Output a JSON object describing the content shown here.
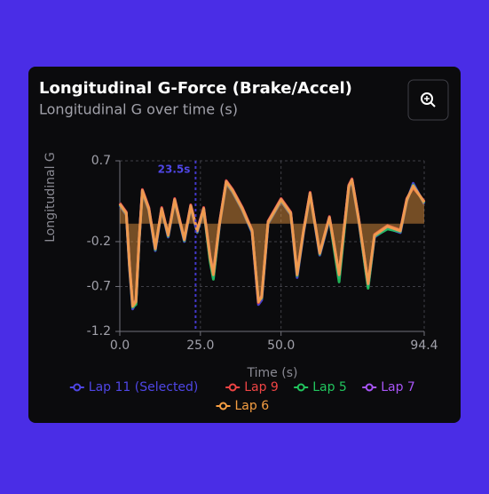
{
  "chart_data": {
    "type": "line",
    "title": "Longitudinal G-Force (Brake/Accel)",
    "subtitle": "Longitudinal G over time (s)",
    "x_label": "Time (s)",
    "y_label": "Longitudinal G",
    "x": [
      0,
      2,
      3,
      4,
      5,
      6,
      7,
      9,
      11,
      13,
      15,
      17,
      20,
      22,
      24,
      26,
      28,
      29,
      31,
      33,
      35,
      38,
      41,
      43,
      44,
      46,
      50,
      53,
      55,
      57,
      59,
      62,
      65,
      68,
      71,
      72,
      74,
      77,
      79,
      83,
      87,
      89,
      91,
      94.4
    ],
    "series": [
      {
        "name": "Lap 11 (Selected)",
        "color": "#4f46e5",
        "values": [
          0.2,
          0.1,
          -0.5,
          -0.95,
          -0.88,
          -0.2,
          0.35,
          0.15,
          -0.3,
          0.15,
          -0.15,
          0.25,
          -0.2,
          0.18,
          -0.1,
          0.15,
          -0.4,
          -0.6,
          0,
          0.45,
          0.35,
          0.15,
          -0.1,
          -0.9,
          -0.85,
          0,
          0.25,
          0.1,
          -0.6,
          -0.1,
          0.32,
          -0.35,
          0.05,
          -0.6,
          0.4,
          0.47,
          0.05,
          -0.7,
          -0.15,
          -0.05,
          -0.1,
          0.25,
          0.45,
          0.22
        ]
      },
      {
        "name": "Lap 9",
        "color": "#ef4444",
        "values": [
          0.23,
          0.13,
          -0.45,
          -0.9,
          -0.85,
          -0.16,
          0.38,
          0.18,
          -0.27,
          0.18,
          -0.12,
          0.28,
          -0.17,
          0.21,
          -0.07,
          0.18,
          -0.36,
          -0.55,
          0.03,
          0.48,
          0.38,
          0.18,
          -0.07,
          -0.88,
          -0.8,
          0.03,
          0.28,
          0.13,
          -0.55,
          -0.07,
          0.35,
          -0.32,
          0.08,
          -0.56,
          0.43,
          0.5,
          0.08,
          -0.66,
          -0.12,
          -0.02,
          -0.07,
          0.28,
          0.4,
          0.25
        ]
      },
      {
        "name": "Lap 5",
        "color": "#22c55e",
        "values": [
          0.21,
          0.11,
          -0.48,
          -0.93,
          -0.9,
          -0.19,
          0.36,
          0.16,
          -0.29,
          0.16,
          -0.14,
          0.26,
          -0.19,
          0.19,
          -0.09,
          0.16,
          -0.42,
          -0.62,
          0.01,
          0.46,
          0.36,
          0.16,
          -0.09,
          -0.86,
          -0.83,
          0.01,
          0.26,
          0.11,
          -0.58,
          -0.09,
          0.33,
          -0.34,
          0.06,
          -0.65,
          0.41,
          0.48,
          0.06,
          -0.72,
          -0.14,
          -0.06,
          -0.09,
          0.26,
          0.43,
          0.23
        ]
      },
      {
        "name": "Lap 7",
        "color": "#a855f7",
        "values": [
          0.22,
          0.12,
          -0.46,
          -0.91,
          -0.86,
          -0.17,
          0.37,
          0.17,
          -0.28,
          0.17,
          -0.13,
          0.27,
          -0.18,
          0.2,
          -0.08,
          0.17,
          -0.37,
          -0.56,
          0.02,
          0.47,
          0.37,
          0.17,
          -0.08,
          -0.86,
          -0.81,
          0.02,
          0.27,
          0.12,
          -0.56,
          -0.08,
          0.34,
          -0.33,
          0.07,
          -0.57,
          0.42,
          0.49,
          0.07,
          -0.67,
          -0.13,
          -0.03,
          -0.08,
          0.27,
          0.42,
          0.24
        ]
      },
      {
        "name": "Lap 6",
        "color": "#f59e42",
        "area": true,
        "values": [
          0.22,
          0.12,
          -0.47,
          -0.92,
          -0.87,
          -0.18,
          0.37,
          0.17,
          -0.28,
          0.17,
          -0.13,
          0.27,
          -0.18,
          0.2,
          -0.08,
          0.17,
          -0.38,
          -0.57,
          0.02,
          0.47,
          0.37,
          0.17,
          -0.08,
          -0.87,
          -0.82,
          0.02,
          0.27,
          0.12,
          -0.57,
          -0.08,
          0.34,
          -0.33,
          0.07,
          -0.57,
          0.42,
          0.49,
          0.07,
          -0.67,
          -0.13,
          -0.03,
          -0.08,
          0.27,
          0.42,
          0.24
        ]
      }
    ],
    "xlim": [
      0,
      94.4
    ],
    "xticks": [
      {
        "value": 0,
        "label": "0.0"
      },
      {
        "value": 25,
        "label": "25.0"
      },
      {
        "value": 50,
        "label": "50.0"
      },
      94.4
    ],
    "ylim": [
      -1.2,
      0.7
    ],
    "yticks": [
      0.7,
      -0.2,
      -0.7,
      -1.2
    ],
    "grid": true,
    "annotations": [
      {
        "x": 23.5,
        "label": "23.5s"
      }
    ]
  }
}
